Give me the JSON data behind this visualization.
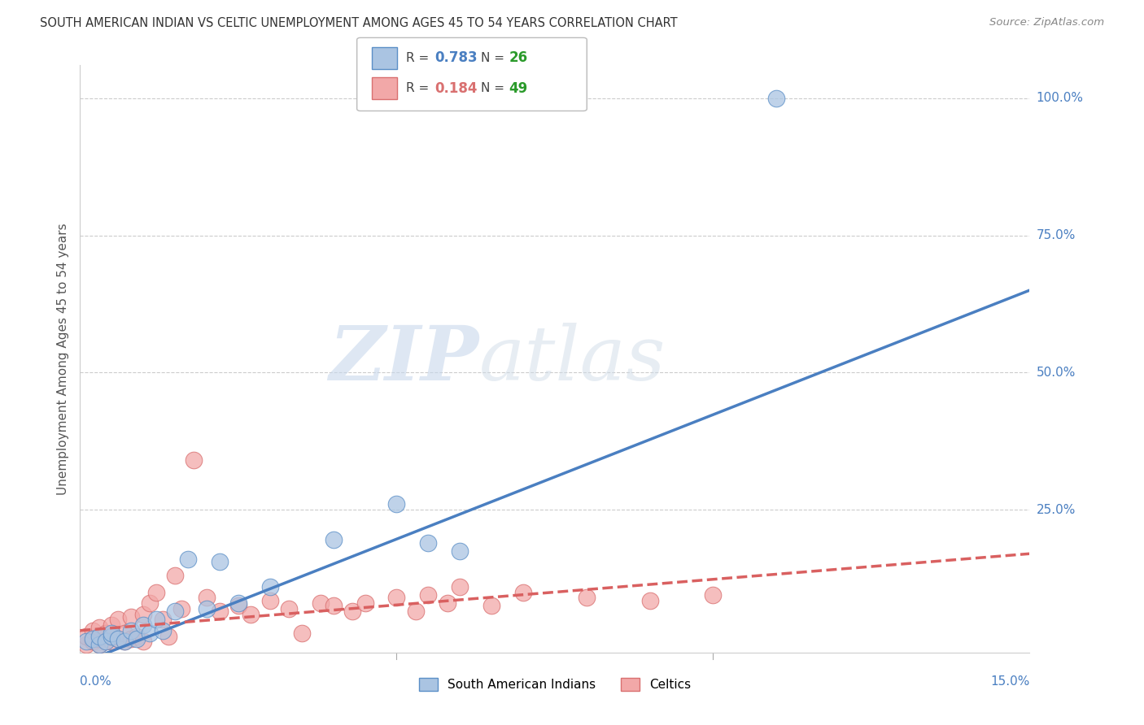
{
  "title": "SOUTH AMERICAN INDIAN VS CELTIC UNEMPLOYMENT AMONG AGES 45 TO 54 YEARS CORRELATION CHART",
  "source": "Source: ZipAtlas.com",
  "ylabel": "Unemployment Among Ages 45 to 54 years",
  "xlim": [
    0.0,
    0.15
  ],
  "ylim": [
    -0.01,
    1.06
  ],
  "ytick_labels": [
    "25.0%",
    "50.0%",
    "75.0%",
    "100.0%"
  ],
  "ytick_values": [
    0.25,
    0.5,
    0.75,
    1.0
  ],
  "background_color": "#ffffff",
  "watermark_text": "ZIPatlas",
  "legend1_r": "0.783",
  "legend1_n": "26",
  "legend2_r": "0.184",
  "legend2_n": "49",
  "blue_fill": "#aac4e2",
  "blue_edge": "#5b8fc7",
  "pink_fill": "#f2a8a8",
  "pink_edge": "#d97070",
  "blue_line": "#4a7fc1",
  "pink_line": "#d96060",
  "green_color": "#2a9a2a",
  "sa_indians_x": [
    0.001,
    0.002,
    0.003,
    0.003,
    0.004,
    0.005,
    0.005,
    0.006,
    0.007,
    0.008,
    0.009,
    0.01,
    0.011,
    0.012,
    0.013,
    0.015,
    0.017,
    0.02,
    0.022,
    0.025,
    0.03,
    0.04,
    0.05,
    0.055,
    0.06,
    0.11
  ],
  "sa_indians_y": [
    0.01,
    0.015,
    0.005,
    0.02,
    0.01,
    0.02,
    0.025,
    0.015,
    0.01,
    0.03,
    0.015,
    0.04,
    0.025,
    0.05,
    0.03,
    0.065,
    0.16,
    0.07,
    0.155,
    0.08,
    0.11,
    0.195,
    0.26,
    0.19,
    0.175,
    1.0
  ],
  "celtics_x": [
    0.001,
    0.001,
    0.002,
    0.002,
    0.003,
    0.003,
    0.003,
    0.004,
    0.004,
    0.005,
    0.005,
    0.005,
    0.006,
    0.006,
    0.007,
    0.007,
    0.008,
    0.008,
    0.009,
    0.01,
    0.01,
    0.011,
    0.012,
    0.013,
    0.014,
    0.015,
    0.016,
    0.018,
    0.02,
    0.022,
    0.025,
    0.027,
    0.03,
    0.033,
    0.035,
    0.038,
    0.04,
    0.043,
    0.045,
    0.05,
    0.053,
    0.055,
    0.058,
    0.06,
    0.065,
    0.07,
    0.08,
    0.09,
    0.1
  ],
  "celtics_y": [
    0.005,
    0.02,
    0.01,
    0.03,
    0.005,
    0.015,
    0.035,
    0.01,
    0.025,
    0.01,
    0.02,
    0.04,
    0.015,
    0.05,
    0.01,
    0.025,
    0.015,
    0.055,
    0.02,
    0.01,
    0.06,
    0.08,
    0.1,
    0.05,
    0.02,
    0.13,
    0.07,
    0.34,
    0.09,
    0.065,
    0.075,
    0.06,
    0.085,
    0.07,
    0.025,
    0.08,
    0.075,
    0.065,
    0.08,
    0.09,
    0.065,
    0.095,
    0.08,
    0.11,
    0.075,
    0.1,
    0.09,
    0.085,
    0.095
  ]
}
